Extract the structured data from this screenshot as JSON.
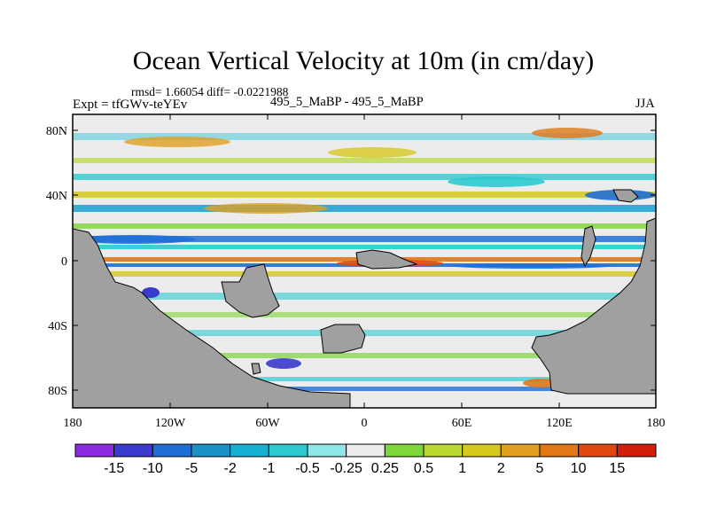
{
  "title": "Ocean Vertical Velocity at 10m (in cm/day)",
  "stats": "rmsd= 1.66054  diff= -0.0221988",
  "expt": "Expt = tfGWv-teYEv",
  "comparison": "495_5_MaBP - 495_5_MaBP",
  "season": "JJA",
  "lat_labels": [
    "80N",
    "40N",
    "0",
    "40S",
    "80S"
  ],
  "lon_labels": [
    "180",
    "120W",
    "60W",
    "0",
    "60E",
    "120E",
    "180"
  ],
  "colorbar": {
    "labels": [
      "-15",
      "-10",
      "-5",
      "-2",
      "-1",
      "-0.5",
      "-0.25",
      "0.25",
      "0.5",
      "1",
      "2",
      "5",
      "10",
      "15"
    ],
    "colors": [
      "#8a2be2",
      "#3a3acd",
      "#1f6fd6",
      "#1e90c8",
      "#18b0d0",
      "#2ecad0",
      "#8ee6e6",
      "#ececec",
      "#7fd63a",
      "#b8d832",
      "#d7c820",
      "#e0a020",
      "#e07818",
      "#e04810",
      "#d21e0a"
    ]
  },
  "colors": {
    "land": "#a0a0a0",
    "ocean_neutral": "#ececec"
  }
}
